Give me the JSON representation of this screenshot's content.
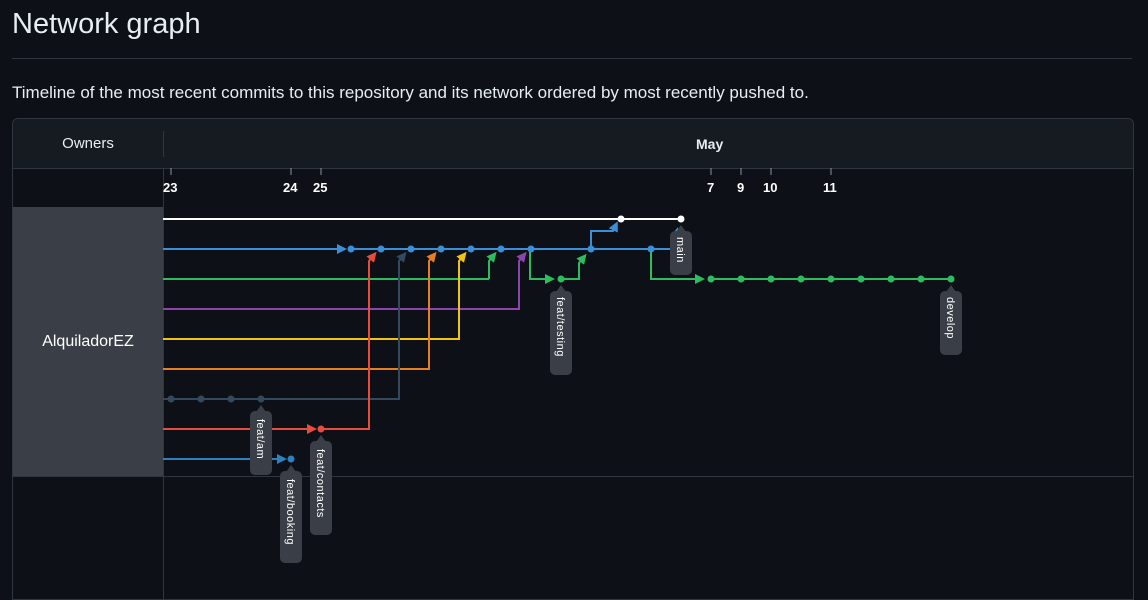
{
  "page": {
    "title": "Network graph",
    "description": "Timeline of the most recent commits to this repository and its network ordered by most recently pushed to."
  },
  "graph": {
    "owners_header": "Owners",
    "month": "May",
    "owner": "AlquiladorEZ",
    "dates": [
      "23",
      "24",
      "25",
      "7",
      "9",
      "10",
      "11"
    ],
    "branches": [
      "main",
      "develop",
      "feat/testing",
      "feat/am",
      "feat/contacts",
      "feat/booking"
    ],
    "colors": {
      "main": "#ffffff",
      "blue": "#3b8fd6",
      "green": "#2dbd5f",
      "purple": "#8e44ad",
      "yellow": "#f1c40f",
      "orange": "#e67e22",
      "slate": "#34495e",
      "red": "#e74c3c",
      "blue2": "#2f80c0"
    }
  }
}
